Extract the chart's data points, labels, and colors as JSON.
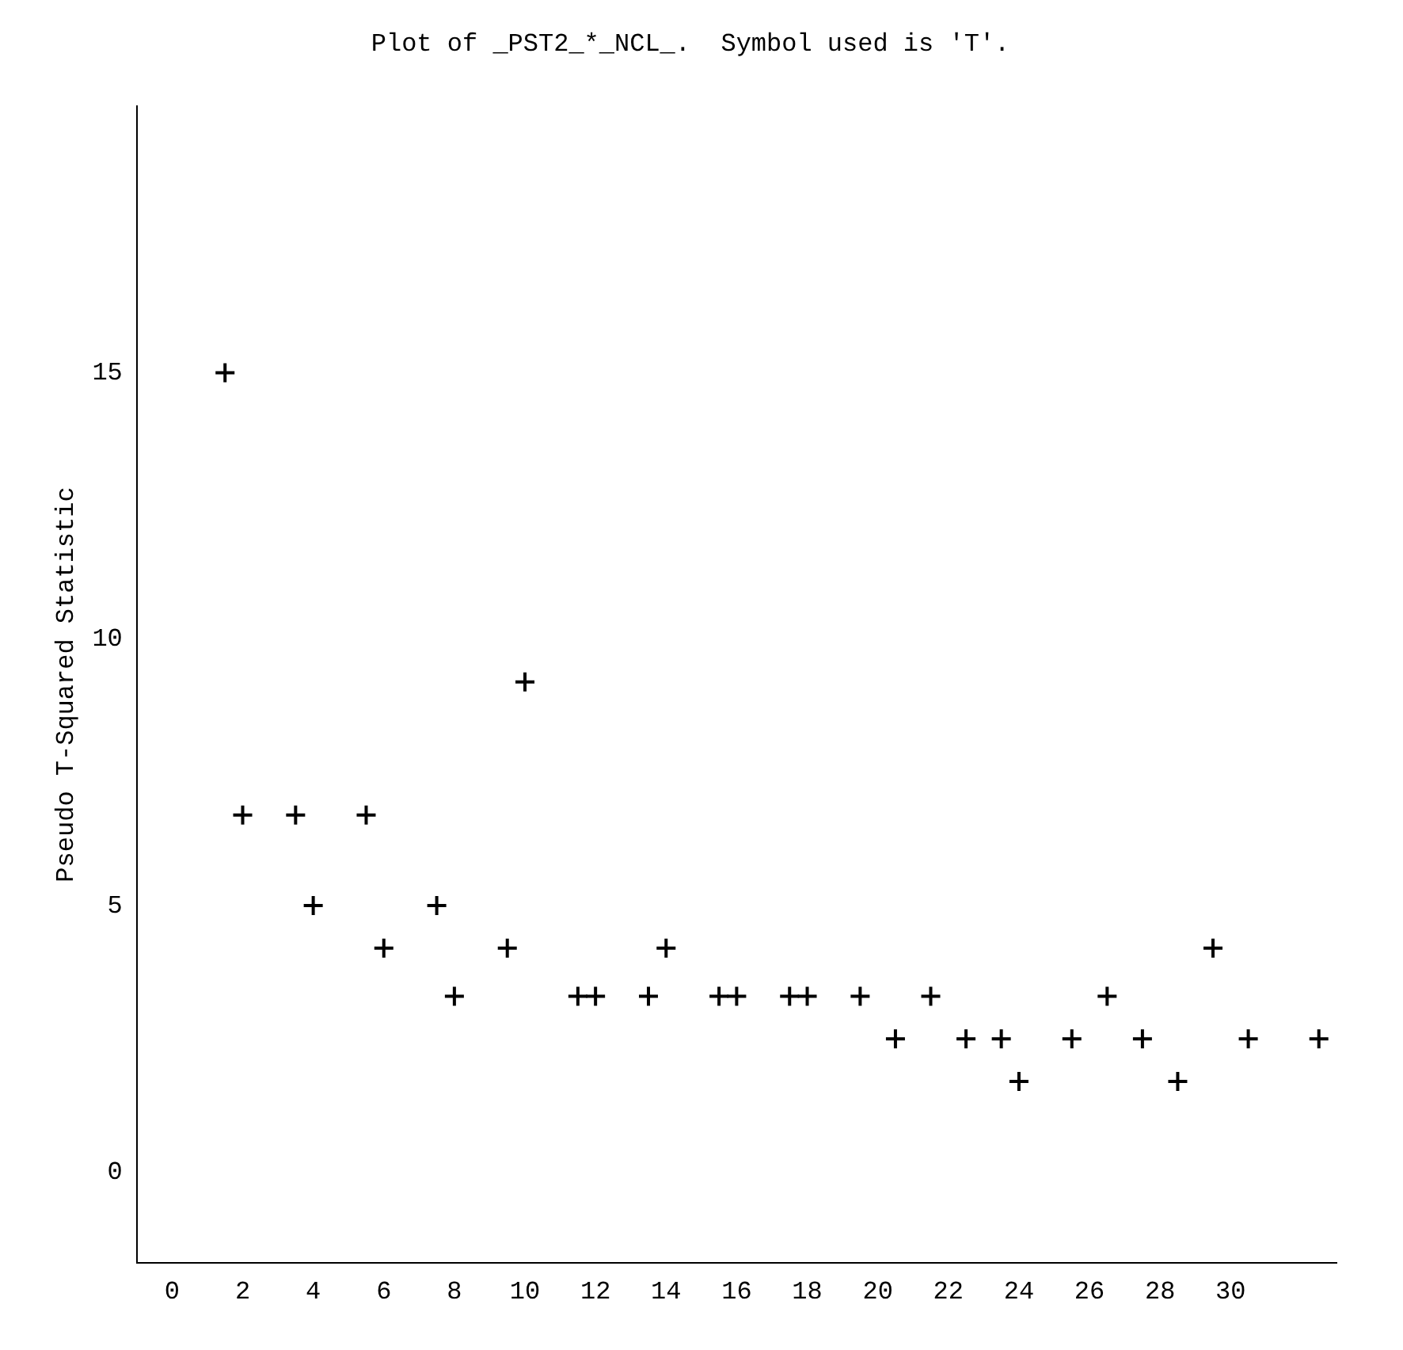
{
  "chart_data": {
    "type": "scatter",
    "title": "Plot of _PST2_*_NCL_.  Symbol used is 'T'.",
    "ylabel": "Pseudo T-Squared Statistic",
    "marker": "cross",
    "x": [
      1.5,
      10,
      2,
      3.5,
      5.5,
      4,
      7.5,
      6,
      9.5,
      14,
      29.5,
      8,
      11.5,
      12,
      13.5,
      15.5,
      16,
      17.5,
      18,
      19.5,
      21.5,
      26.5,
      20.5,
      22.5,
      23.5,
      25.5,
      27.5,
      30.5,
      32.5,
      24,
      28.5
    ],
    "series": [
      {
        "color": "#000000",
        "values": [
          15,
          9.2,
          6.7,
          6.7,
          6.7,
          5,
          5,
          4.2,
          4.2,
          4.2,
          4.2,
          3.3,
          3.3,
          3.3,
          3.3,
          3.3,
          3.3,
          3.3,
          3.3,
          3.3,
          3.3,
          3.3,
          2.5,
          2.5,
          2.5,
          2.5,
          2.5,
          2.5,
          2.5,
          1.7,
          1.7
        ]
      }
    ],
    "xlim": [
      -1,
      33
    ],
    "xticks": [
      0,
      2,
      4,
      6,
      8,
      10,
      12,
      14,
      16,
      18,
      20,
      22,
      24,
      26,
      28,
      30
    ],
    "ylim": [
      -1.7,
      20
    ],
    "yticks": [
      0,
      5,
      10,
      15
    ],
    "grid": false,
    "legend": false
  }
}
